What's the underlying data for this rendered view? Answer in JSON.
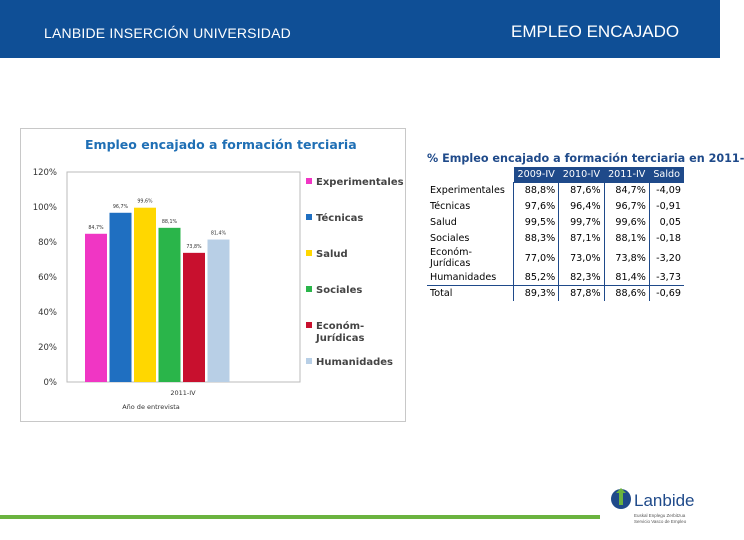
{
  "header": {
    "left_title": "LANBIDE INSERCIÓN UNIVERSIDAD",
    "right_title": "EMPLEO ENCAJADO",
    "background": "#0f4f96"
  },
  "chart_data": {
    "type": "bar",
    "title": "Empleo encajado a formación terciaria",
    "xlabel": "Año de entrevista",
    "categories": [
      "2011-IV"
    ],
    "ylim": [
      0,
      120
    ],
    "yticks": [
      "0%",
      "20%",
      "40%",
      "60%",
      "80%",
      "100%",
      "120%"
    ],
    "legend_position": "right",
    "series": [
      {
        "name": "Experimentales",
        "value": 84.7,
        "label": "84,7%",
        "color": "#f036c4"
      },
      {
        "name": "Técnicas",
        "value": 96.7,
        "label": "96,7%",
        "color": "#1f6fc1"
      },
      {
        "name": "Salud",
        "value": 99.6,
        "label": "99,6%",
        "color": "#ffd700"
      },
      {
        "name": "Sociales",
        "value": 88.1,
        "label": "88,1%",
        "color": "#2ab54a"
      },
      {
        "name": "Económ-Jurídicas",
        "value": 73.8,
        "label": "73,8%",
        "color": "#c8102e"
      },
      {
        "name": "Humanidades",
        "value": 81.4,
        "label": "81,4%",
        "color": "#b8cfe6"
      }
    ],
    "legend_labels": [
      "Experimentales",
      "Técnicas",
      "Salud",
      "Sociales",
      "Económ-\nJurídicas",
      "Humanidades"
    ]
  },
  "table": {
    "title": "% Empleo encajado a formación terciaria en 2011-",
    "columns": [
      "2009-IV",
      "2010-IV",
      "2011-IV",
      "Saldo"
    ],
    "rows": [
      {
        "label": "Experimentales",
        "values": [
          "88,8%",
          "87,6%",
          "84,7%",
          "-4,09"
        ]
      },
      {
        "label": "Técnicas",
        "values": [
          "97,6%",
          "96,4%",
          "96,7%",
          "-0,91"
        ]
      },
      {
        "label": "Salud",
        "values": [
          "99,5%",
          "99,7%",
          "99,6%",
          "0,05"
        ]
      },
      {
        "label": "Sociales",
        "values": [
          "88,3%",
          "87,1%",
          "88,1%",
          "-0,18"
        ]
      },
      {
        "label": "Económ-Jurídicas",
        "values": [
          "77,0%",
          "73,0%",
          "73,8%",
          "-3,20"
        ]
      },
      {
        "label": "Humanidades",
        "values": [
          "85,2%",
          "82,3%",
          "81,4%",
          "-3,73"
        ]
      }
    ],
    "total": {
      "label": "Total",
      "values": [
        "89,3%",
        "87,8%",
        "88,6%",
        "-0,69"
      ]
    }
  },
  "logo": {
    "name": "Lanbide",
    "subtitle": [
      "Euskal Enplegu Zerbitzua",
      "Servicio Vasco de Empleo"
    ],
    "color": "#1f4a8a",
    "accent": "#6bb33f"
  }
}
